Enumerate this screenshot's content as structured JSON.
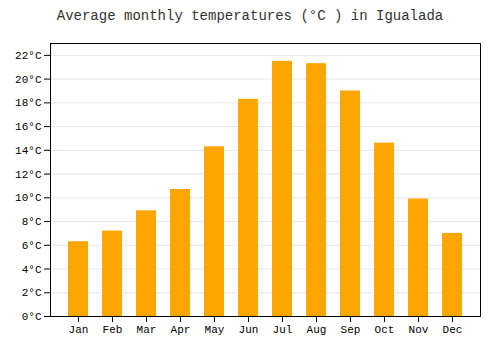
{
  "chart_data": {
    "type": "bar",
    "title": "Average monthly temperatures (°C ) in Igualada",
    "categories": [
      "Jan",
      "Feb",
      "Mar",
      "Apr",
      "May",
      "Jun",
      "Jul",
      "Aug",
      "Sep",
      "Oct",
      "Nov",
      "Dec"
    ],
    "values": [
      6.3,
      7.2,
      8.9,
      10.7,
      14.3,
      18.3,
      21.5,
      21.3,
      19.0,
      14.6,
      9.9,
      7.0
    ],
    "color": "#FFA500",
    "ylim": [
      0,
      23
    ],
    "yticks": [
      {
        "value": 0,
        "label": "0°C"
      },
      {
        "value": 2,
        "label": "2°C"
      },
      {
        "value": 4,
        "label": "4°C"
      },
      {
        "value": 6,
        "label": "6°C"
      },
      {
        "value": 8,
        "label": "8°C"
      },
      {
        "value": 10,
        "label": "10°C"
      },
      {
        "value": 12,
        "label": "12°C"
      },
      {
        "value": 14,
        "label": "14°C"
      },
      {
        "value": 16,
        "label": "16°C"
      },
      {
        "value": 18,
        "label": "18°C"
      },
      {
        "value": 20,
        "label": "20°C"
      },
      {
        "value": 22,
        "label": "22°C"
      }
    ],
    "grid": true
  }
}
